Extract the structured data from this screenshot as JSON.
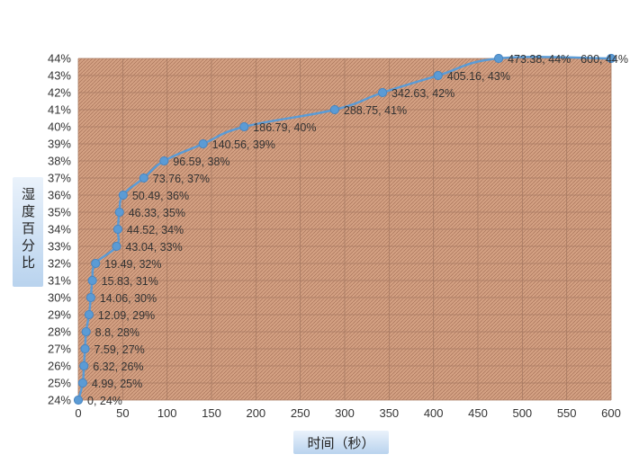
{
  "chart_data": {
    "type": "scatter",
    "xlabel": "时间（秒）",
    "ylabel": "湿度百分比",
    "xlim": [
      0,
      600
    ],
    "ylim": [
      24,
      44
    ],
    "xticks": [
      0,
      50,
      100,
      150,
      200,
      250,
      300,
      350,
      400,
      450,
      500,
      550,
      600
    ],
    "yticks": [
      24,
      25,
      26,
      27,
      28,
      29,
      30,
      31,
      32,
      33,
      34,
      35,
      36,
      37,
      38,
      39,
      40,
      41,
      42,
      43,
      44
    ],
    "y_unit": "%",
    "grid": true,
    "legend": "none",
    "line_color": "#5b9bd5",
    "plot_background": "#d9a98c",
    "points": [
      {
        "x": 0,
        "y": 24,
        "label": "0, 24%"
      },
      {
        "x": 4.99,
        "y": 25,
        "label": "4.99, 25%"
      },
      {
        "x": 6.32,
        "y": 26,
        "label": "6.32, 26%"
      },
      {
        "x": 7.59,
        "y": 27,
        "label": "7.59, 27%"
      },
      {
        "x": 8.8,
        "y": 28,
        "label": "8.8, 28%"
      },
      {
        "x": 12.09,
        "y": 29,
        "label": "12.09, 29%"
      },
      {
        "x": 14.06,
        "y": 30,
        "label": "14.06, 30%"
      },
      {
        "x": 15.83,
        "y": 31,
        "label": "15.83, 31%"
      },
      {
        "x": 19.49,
        "y": 32,
        "label": "19.49, 32%"
      },
      {
        "x": 43.04,
        "y": 33,
        "label": "43.04, 33%"
      },
      {
        "x": 44.52,
        "y": 34,
        "label": "44.52, 34%"
      },
      {
        "x": 46.33,
        "y": 35,
        "label": "46.33, 35%"
      },
      {
        "x": 50.49,
        "y": 36,
        "label": "50.49, 36%"
      },
      {
        "x": 73.76,
        "y": 37,
        "label": "73.76, 37%"
      },
      {
        "x": 96.59,
        "y": 38,
        "label": "96.59, 38%"
      },
      {
        "x": 140.56,
        "y": 39,
        "label": "140.56, 39%"
      },
      {
        "x": 186.79,
        "y": 40,
        "label": "186.79, 40%"
      },
      {
        "x": 288.75,
        "y": 41,
        "label": "288.75, 41%"
      },
      {
        "x": 342.63,
        "y": 42,
        "label": "342.63, 42%"
      },
      {
        "x": 405.16,
        "y": 43,
        "label": "405.16, 43%"
      },
      {
        "x": 473.38,
        "y": 44,
        "label": "473.38, 44%"
      },
      {
        "x": 600,
        "y": 44,
        "label": "600, 44%"
      }
    ]
  }
}
